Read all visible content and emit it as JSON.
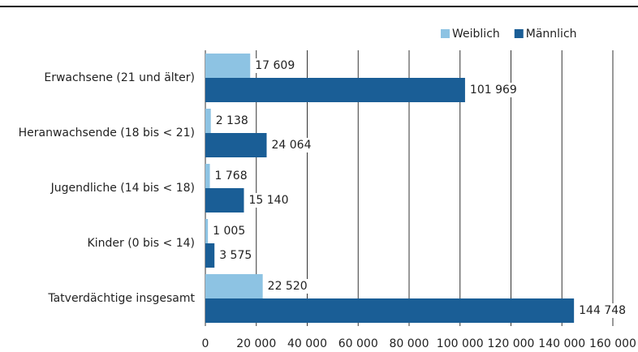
{
  "chart_data": {
    "type": "hbar",
    "categories": [
      "Erwachsene (21 und älter)",
      "Heranwachsende (18 bis < 21)",
      "Jugendliche (14 bis < 18)",
      "Kinder (0 bis < 14)",
      "Tatverdächtige insgesamt"
    ],
    "series": [
      {
        "name": "Weiblich",
        "color": "#8dc3e3",
        "values": [
          17609,
          2138,
          1768,
          1005,
          22520
        ],
        "value_labels": [
          "17 609",
          "2 138",
          "1 768",
          "1 005",
          "22 520"
        ]
      },
      {
        "name": "Männlich",
        "color": "#1a5e96",
        "values": [
          101969,
          24064,
          15140,
          3575,
          144748
        ],
        "value_labels": [
          "101 969",
          "24 064",
          "15 140",
          "3 575",
          "144 748"
        ]
      }
    ],
    "xlim": [
      0,
      160000
    ],
    "xticks": [
      0,
      {
        "value": 20000,
        "label": "20 000"
      },
      {
        "value": 40000,
        "label": "40 000"
      },
      {
        "value": 60000,
        "label": "60 000"
      },
      {
        "value": 80000,
        "label": "80 000"
      },
      {
        "value": 100000,
        "label": "100 000"
      },
      {
        "value": 120000,
        "label": "120 000"
      },
      {
        "value": 140000,
        "label": "140 000"
      },
      {
        "value": 160000,
        "label": "160 000"
      }
    ],
    "grid": true,
    "legend": "top-right"
  }
}
